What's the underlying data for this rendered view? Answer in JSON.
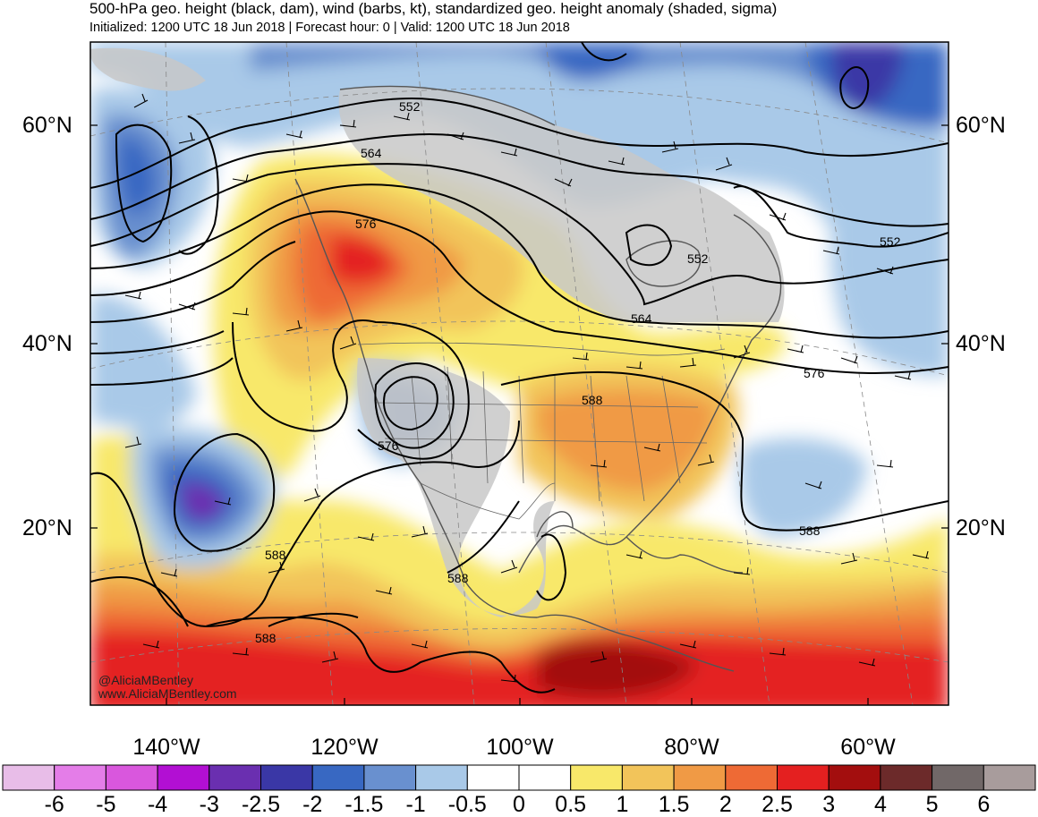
{
  "header": {
    "title": "500-hPa geo. height (black, dam), wind (barbs, kt), standardized geo. height anomaly (shaded, sigma)",
    "subtitle": "Initialized: 1200 UTC 18 Jun 2018 | Forecast hour: 0 | Valid: 1200 UTC 18 Jun 2018"
  },
  "map": {
    "lat_labels": [
      "60°N",
      "40°N",
      "20°N"
    ],
    "lon_labels": [
      "140°W",
      "120°W",
      "100°W",
      "80°W",
      "60°W"
    ],
    "contour_labels": [
      "552",
      "564",
      "576",
      "552",
      "564",
      "552",
      "576",
      "588",
      "576",
      "588",
      "588",
      "588",
      "588"
    ],
    "credits": [
      "@AliciaMBentley",
      "www.AliciaMBentley.com"
    ]
  },
  "colorbar": {
    "labels": [
      "-6",
      "-5",
      "-4",
      "-3",
      "-2.5",
      "-2",
      "-1.5",
      "-1",
      "-0.5",
      "0",
      "0.5",
      "1",
      "1.5",
      "2",
      "2.5",
      "3",
      "4",
      "5",
      "6"
    ],
    "colors": [
      "#e8bde8",
      "#e47de8",
      "#d957dd",
      "#b20fd3",
      "#6a2fb0",
      "#3a37a6",
      "#3868c2",
      "#6990cf",
      "#a9c9e8",
      "#ffffff",
      "#ffffff",
      "#f8e86a",
      "#f2c45a",
      "#f09a45",
      "#ee6a35",
      "#e42020",
      "#a30e0e",
      "#6c2a2a",
      "#716868",
      "#a89c9c"
    ]
  }
}
